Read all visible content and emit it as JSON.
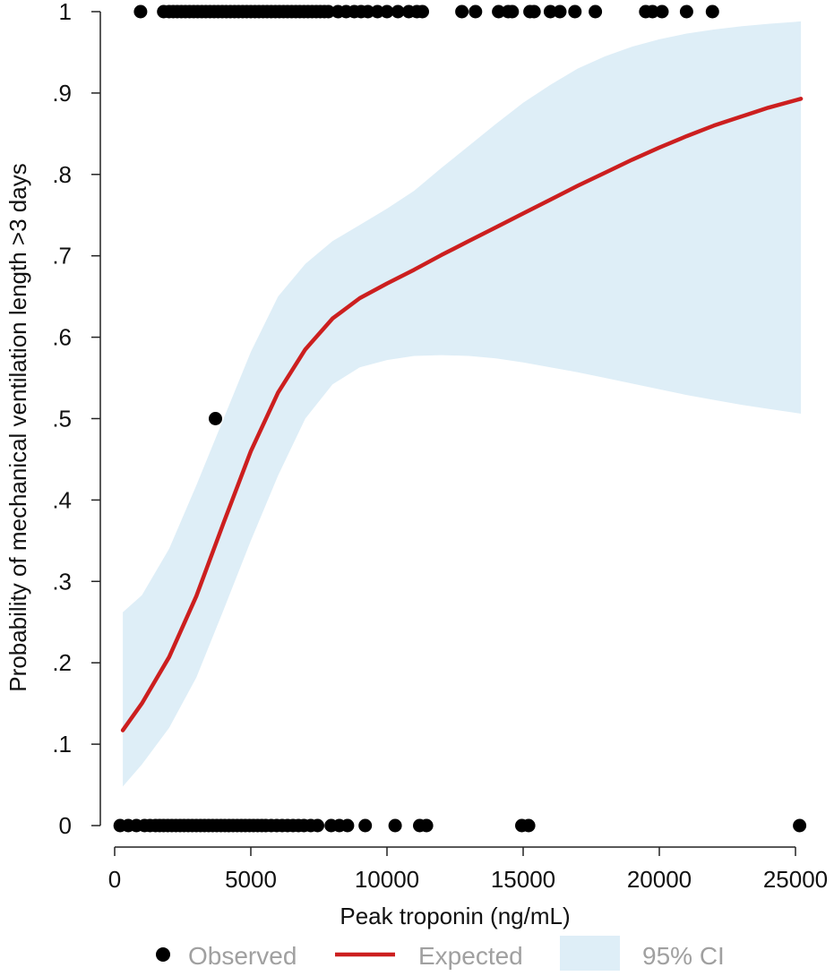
{
  "chart_data": {
    "type": "scatter",
    "title": "",
    "xlabel": "Peak troponin (ng/mL)",
    "ylabel": "Probability of mechanical ventilation length >3 days",
    "xlim": [
      0,
      26000
    ],
    "ylim": [
      0,
      1
    ],
    "x_ticks": [
      0,
      5000,
      10000,
      15000,
      20000,
      25000
    ],
    "x_tick_labels": [
      "0",
      "5000",
      "10000",
      "15000",
      "20000",
      "25000"
    ],
    "y_ticks": [
      0,
      0.1,
      0.2,
      0.3,
      0.4,
      0.5,
      0.6,
      0.7,
      0.8,
      0.9,
      1
    ],
    "y_tick_labels": [
      "0",
      ".1",
      ".2",
      ".3",
      ".4",
      ".5",
      ".6",
      ".7",
      ".8",
      ".9",
      "1"
    ],
    "grid": false,
    "legend_position": "bottom",
    "colors": {
      "observed": "#000000",
      "expected": "#cc1f1f",
      "ci": "#deeef7"
    },
    "series": [
      {
        "name": "Observed",
        "kind": "scatter",
        "points": [
          [
            950,
            1
          ],
          [
            1800,
            1
          ],
          [
            2000,
            1
          ],
          [
            2150,
            1
          ],
          [
            2300,
            1
          ],
          [
            2450,
            1
          ],
          [
            2600,
            1
          ],
          [
            2750,
            1
          ],
          [
            2900,
            1
          ],
          [
            3050,
            1
          ],
          [
            3200,
            1
          ],
          [
            3350,
            1
          ],
          [
            3500,
            1
          ],
          [
            3650,
            1
          ],
          [
            3800,
            1
          ],
          [
            3950,
            1
          ],
          [
            4100,
            1
          ],
          [
            4250,
            1
          ],
          [
            4400,
            1
          ],
          [
            4550,
            1
          ],
          [
            4700,
            1
          ],
          [
            4850,
            1
          ],
          [
            5000,
            1
          ],
          [
            5150,
            1
          ],
          [
            5300,
            1
          ],
          [
            5450,
            1
          ],
          [
            5600,
            1
          ],
          [
            5750,
            1
          ],
          [
            5900,
            1
          ],
          [
            6050,
            1
          ],
          [
            6200,
            1
          ],
          [
            6350,
            1
          ],
          [
            6500,
            1
          ],
          [
            6650,
            1
          ],
          [
            6800,
            1
          ],
          [
            6950,
            1
          ],
          [
            7100,
            1
          ],
          [
            7250,
            1
          ],
          [
            7400,
            1
          ],
          [
            7550,
            1
          ],
          [
            7700,
            1
          ],
          [
            7850,
            1
          ],
          [
            8200,
            1
          ],
          [
            8500,
            1
          ],
          [
            8800,
            1
          ],
          [
            9050,
            1
          ],
          [
            9300,
            1
          ],
          [
            9650,
            1
          ],
          [
            10000,
            1
          ],
          [
            10400,
            1
          ],
          [
            10800,
            1
          ],
          [
            11100,
            1
          ],
          [
            11300,
            1
          ],
          [
            12750,
            1
          ],
          [
            13250,
            1
          ],
          [
            14100,
            1
          ],
          [
            14450,
            1
          ],
          [
            14600,
            1
          ],
          [
            15250,
            1
          ],
          [
            15400,
            1
          ],
          [
            16000,
            1
          ],
          [
            16350,
            1
          ],
          [
            16900,
            1
          ],
          [
            17650,
            1
          ],
          [
            19500,
            1
          ],
          [
            19750,
            1
          ],
          [
            20100,
            1
          ],
          [
            21000,
            1
          ],
          [
            21950,
            1
          ],
          [
            3700,
            0.5
          ],
          [
            200,
            0
          ],
          [
            500,
            0
          ],
          [
            800,
            0
          ],
          [
            1100,
            0
          ],
          [
            1300,
            0
          ],
          [
            1500,
            0
          ],
          [
            1650,
            0
          ],
          [
            1800,
            0
          ],
          [
            1950,
            0
          ],
          [
            2100,
            0
          ],
          [
            2250,
            0
          ],
          [
            2400,
            0
          ],
          [
            2550,
            0
          ],
          [
            2700,
            0
          ],
          [
            2850,
            0
          ],
          [
            3000,
            0
          ],
          [
            3150,
            0
          ],
          [
            3300,
            0
          ],
          [
            3450,
            0
          ],
          [
            3600,
            0
          ],
          [
            3750,
            0
          ],
          [
            3900,
            0
          ],
          [
            4050,
            0
          ],
          [
            4200,
            0
          ],
          [
            4350,
            0
          ],
          [
            4500,
            0
          ],
          [
            4650,
            0
          ],
          [
            4800,
            0
          ],
          [
            4950,
            0
          ],
          [
            5100,
            0
          ],
          [
            5250,
            0
          ],
          [
            5400,
            0
          ],
          [
            5550,
            0
          ],
          [
            5750,
            0
          ],
          [
            5950,
            0
          ],
          [
            6150,
            0
          ],
          [
            6350,
            0
          ],
          [
            6550,
            0
          ],
          [
            6750,
            0
          ],
          [
            6950,
            0
          ],
          [
            7200,
            0
          ],
          [
            7450,
            0
          ],
          [
            7950,
            0
          ],
          [
            8250,
            0
          ],
          [
            8550,
            0
          ],
          [
            9200,
            0
          ],
          [
            10300,
            0
          ],
          [
            11200,
            0
          ],
          [
            11450,
            0
          ],
          [
            14950,
            0
          ],
          [
            15200,
            0
          ],
          [
            25150,
            0
          ]
        ]
      },
      {
        "name": "Expected",
        "kind": "line",
        "x": [
          300,
          1000,
          2000,
          3000,
          4000,
          5000,
          6000,
          7000,
          8000,
          9000,
          10000,
          11000,
          12000,
          13000,
          14000,
          15000,
          16000,
          17000,
          18000,
          19000,
          20000,
          21000,
          22000,
          23000,
          24000,
          25200
        ],
        "y": [
          0.117,
          0.15,
          0.207,
          0.282,
          0.372,
          0.46,
          0.532,
          0.585,
          0.623,
          0.648,
          0.666,
          0.683,
          0.701,
          0.718,
          0.735,
          0.752,
          0.769,
          0.786,
          0.802,
          0.818,
          0.833,
          0.847,
          0.86,
          0.871,
          0.882,
          0.893
        ]
      },
      {
        "name": "95% CI",
        "kind": "band",
        "x": [
          300,
          1000,
          2000,
          3000,
          4000,
          5000,
          6000,
          7000,
          8000,
          9000,
          10000,
          11000,
          12000,
          13000,
          14000,
          15000,
          16000,
          17000,
          18000,
          19000,
          20000,
          21000,
          22000,
          23000,
          24000,
          25200
        ],
        "lower": [
          0.048,
          0.075,
          0.12,
          0.182,
          0.265,
          0.35,
          0.43,
          0.5,
          0.542,
          0.563,
          0.572,
          0.577,
          0.578,
          0.577,
          0.574,
          0.569,
          0.563,
          0.557,
          0.55,
          0.543,
          0.536,
          0.529,
          0.523,
          0.517,
          0.512,
          0.506
        ],
        "upper": [
          0.262,
          0.283,
          0.34,
          0.418,
          0.5,
          0.582,
          0.65,
          0.69,
          0.718,
          0.738,
          0.758,
          0.78,
          0.808,
          0.835,
          0.862,
          0.888,
          0.91,
          0.93,
          0.945,
          0.957,
          0.966,
          0.973,
          0.978,
          0.982,
          0.985,
          0.988
        ]
      }
    ],
    "legend": [
      {
        "label": "Observed",
        "symbol": "dot"
      },
      {
        "label": "Expected",
        "symbol": "line"
      },
      {
        "label": "95% CI",
        "symbol": "area"
      }
    ]
  }
}
